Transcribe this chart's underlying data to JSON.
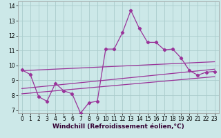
{
  "xlabel": "Windchill (Refroidissement éolien,°C)",
  "background_color": "#cce8e8",
  "line_color": "#993399",
  "grid_color": "#aacccc",
  "x_ticks": [
    0,
    1,
    2,
    3,
    4,
    5,
    6,
    7,
    8,
    9,
    10,
    11,
    12,
    13,
    14,
    15,
    16,
    17,
    18,
    19,
    20,
    21,
    22,
    23
  ],
  "y_ticks": [
    7,
    8,
    9,
    10,
    11,
    12,
    13,
    14
  ],
  "ylim": [
    6.8,
    14.3
  ],
  "xlim": [
    -0.5,
    23.5
  ],
  "series1_x": [
    0,
    1,
    2,
    3,
    4,
    5,
    6,
    7,
    8,
    9,
    10,
    11,
    12,
    13,
    14,
    15,
    16,
    17,
    18,
    19,
    20,
    21,
    22,
    23
  ],
  "series1_y": [
    9.7,
    9.4,
    7.9,
    7.6,
    8.8,
    8.3,
    8.1,
    6.8,
    7.5,
    7.6,
    11.1,
    11.1,
    12.2,
    13.7,
    12.5,
    11.55,
    11.55,
    11.05,
    11.1,
    10.5,
    9.65,
    9.35,
    9.55,
    9.6
  ],
  "series2_x": [
    0,
    23
  ],
  "series2_y": [
    8.1,
    9.25
  ],
  "series3_x": [
    0,
    23
  ],
  "series3_y": [
    8.45,
    9.75
  ],
  "series4_x": [
    0,
    23
  ],
  "series4_y": [
    9.65,
    10.25
  ],
  "tick_fontsize": 5.5,
  "xlabel_fontsize": 6.5
}
